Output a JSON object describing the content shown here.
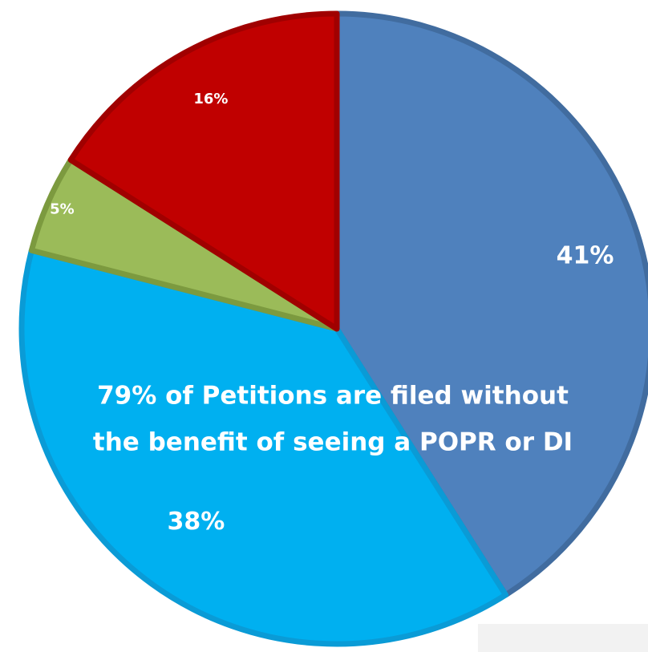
{
  "chart_data": {
    "type": "pie",
    "slices": [
      {
        "label": "41%",
        "value": 41,
        "color": "#4f81bd",
        "stroke": "#416c9f"
      },
      {
        "label": "38%",
        "value": 38,
        "color": "#00b0f0",
        "stroke": "#0a9bd6"
      },
      {
        "label": "5%",
        "value": 5,
        "color": "#9bbb59",
        "stroke": "#7c9a3f"
      },
      {
        "label": "16%",
        "value": 16,
        "color": "#c00000",
        "stroke": "#a00000"
      }
    ],
    "start_angle_deg": 0,
    "direction": "clockwise",
    "annotation": {
      "lines": [
        "79% of Petitions are filed without",
        "the benefit of seeing a POPR or DI"
      ]
    }
  }
}
